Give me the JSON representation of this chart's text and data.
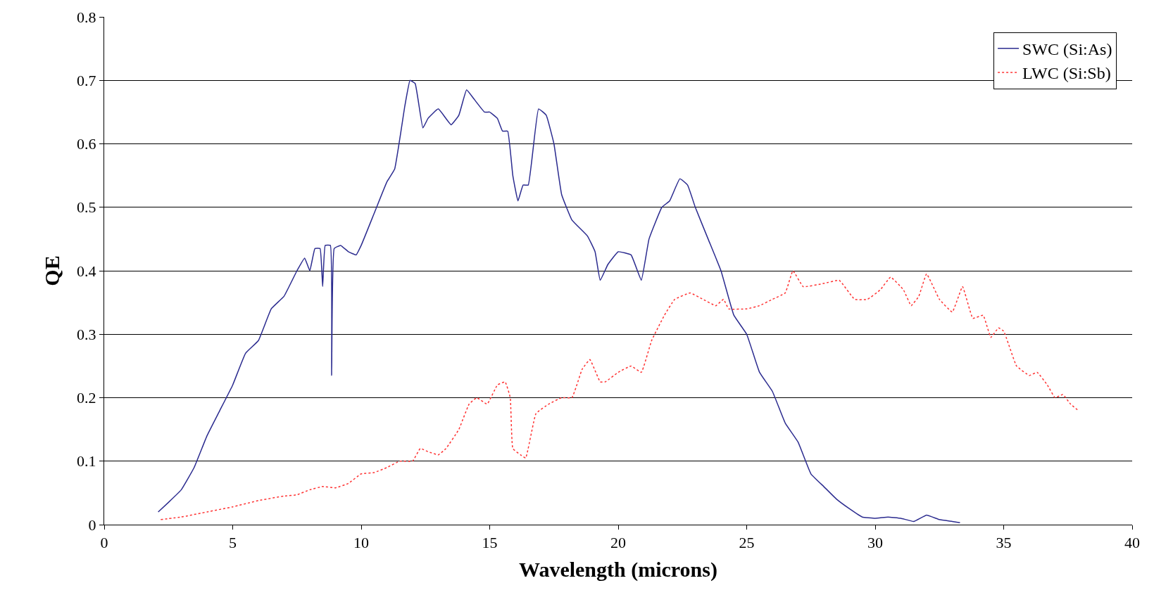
{
  "chart_data": {
    "type": "line",
    "xlabel": "Wavelength (microns)",
    "ylabel": "QE",
    "xlim": [
      0,
      40
    ],
    "xticks": [
      0,
      5,
      10,
      15,
      20,
      25,
      30,
      35,
      40
    ],
    "ylim": [
      0,
      0.8
    ],
    "yticks": [
      0,
      0.1,
      0.2,
      0.3,
      0.4,
      0.5,
      0.6,
      0.7,
      0.8
    ],
    "grid": "y",
    "legend": "top right",
    "series": [
      {
        "name": "SWC (Si:As)",
        "color": "#2b2b8f",
        "line_style": "solid",
        "x": [
          2.1,
          2.5,
          3,
          3.5,
          4,
          4.5,
          5,
          5.5,
          6,
          6.5,
          7,
          7.5,
          7.8,
          8,
          8.2,
          8.4,
          8.5,
          8.6,
          8.8,
          8.85,
          8.95,
          9.2,
          9.5,
          9.8,
          10,
          10.5,
          11,
          11.3,
          11.7,
          11.9,
          12.1,
          12.4,
          12.6,
          13,
          13.5,
          13.8,
          14.1,
          14.4,
          14.8,
          15,
          15.3,
          15.5,
          15.7,
          15.9,
          16.1,
          16.3,
          16.5,
          16.9,
          17.2,
          17.5,
          17.8,
          18.2,
          18.8,
          19.1,
          19.3,
          19.6,
          20,
          20.5,
          20.9,
          21.2,
          21.7,
          22,
          22.4,
          22.7,
          23,
          23.5,
          24,
          24.5,
          25,
          25.5,
          26,
          26.5,
          27,
          27.5,
          28,
          28.5,
          29,
          29.5,
          30,
          30.5,
          31,
          31.5,
          32,
          32.5,
          33,
          33.3
        ],
        "values": [
          0.02,
          0.035,
          0.055,
          0.09,
          0.14,
          0.18,
          0.22,
          0.27,
          0.29,
          0.34,
          0.36,
          0.4,
          0.42,
          0.4,
          0.435,
          0.435,
          0.375,
          0.44,
          0.44,
          0.235,
          0.435,
          0.44,
          0.43,
          0.425,
          0.44,
          0.49,
          0.54,
          0.56,
          0.66,
          0.7,
          0.695,
          0.625,
          0.64,
          0.655,
          0.63,
          0.645,
          0.685,
          0.67,
          0.65,
          0.65,
          0.64,
          0.62,
          0.62,
          0.55,
          0.51,
          0.535,
          0.535,
          0.655,
          0.645,
          0.6,
          0.52,
          0.48,
          0.455,
          0.43,
          0.385,
          0.41,
          0.43,
          0.425,
          0.385,
          0.45,
          0.5,
          0.51,
          0.545,
          0.535,
          0.5,
          0.45,
          0.4,
          0.33,
          0.3,
          0.24,
          0.21,
          0.16,
          0.13,
          0.08,
          0.06,
          0.04,
          0.025,
          0.012,
          0.01,
          0.012,
          0.01,
          0.005,
          0.015,
          0.008,
          0.005,
          0.003
        ]
      },
      {
        "name": "LWC (Si:Sb)",
        "color": "#ff3333",
        "line_style": "dotted",
        "x": [
          2.2,
          3,
          4,
          5,
          6,
          7,
          7.5,
          8,
          8.5,
          9,
          9.5,
          10,
          10.5,
          11,
          11.5,
          12,
          12.3,
          12.6,
          13,
          13.3,
          13.8,
          14.2,
          14.5,
          14.9,
          15.3,
          15.6,
          15.8,
          15.9,
          16.2,
          16.4,
          16.8,
          17.3,
          17.8,
          18.2,
          18.6,
          18.9,
          19.3,
          19.5,
          20,
          20.5,
          20.9,
          21.3,
          21.8,
          22.2,
          22.8,
          23.3,
          23.8,
          24.1,
          24.3,
          25,
          25.5,
          26,
          26.5,
          26.8,
          27.2,
          28,
          28.6,
          29.2,
          29.7,
          30.2,
          30.6,
          31.1,
          31.4,
          31.7,
          32,
          32.5,
          33,
          33.4,
          33.8,
          34.2,
          34.5,
          34.8,
          35,
          35.5,
          36,
          36.3,
          36.7,
          37,
          37.3,
          37.6,
          37.9
        ],
        "values": [
          0.008,
          0.012,
          0.02,
          0.028,
          0.038,
          0.045,
          0.047,
          0.055,
          0.06,
          0.058,
          0.065,
          0.08,
          0.082,
          0.09,
          0.1,
          0.1,
          0.12,
          0.115,
          0.11,
          0.12,
          0.15,
          0.19,
          0.2,
          0.19,
          0.22,
          0.225,
          0.2,
          0.12,
          0.11,
          0.105,
          0.175,
          0.19,
          0.2,
          0.2,
          0.245,
          0.26,
          0.225,
          0.225,
          0.24,
          0.25,
          0.24,
          0.29,
          0.33,
          0.355,
          0.365,
          0.355,
          0.345,
          0.355,
          0.34,
          0.34,
          0.345,
          0.355,
          0.365,
          0.4,
          0.375,
          0.38,
          0.385,
          0.355,
          0.355,
          0.37,
          0.39,
          0.37,
          0.345,
          0.36,
          0.395,
          0.355,
          0.335,
          0.375,
          0.325,
          0.33,
          0.295,
          0.31,
          0.305,
          0.25,
          0.235,
          0.24,
          0.22,
          0.2,
          0.205,
          0.19,
          0.18
        ]
      }
    ]
  }
}
